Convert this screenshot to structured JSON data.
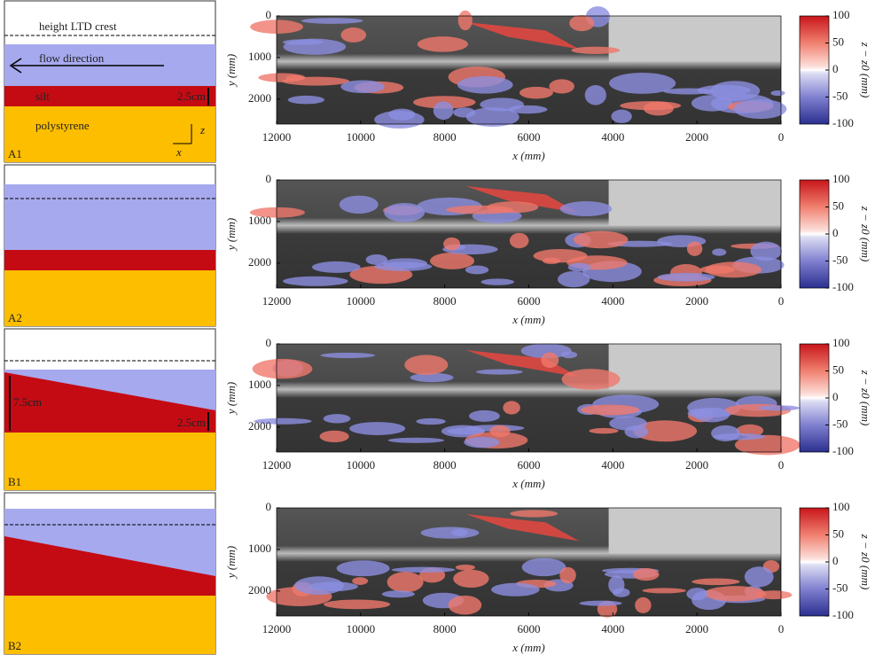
{
  "panels": [
    {
      "label": "A1",
      "crest": "height LTD crest",
      "flow": "flow direction",
      "silt": "silt",
      "thickness": "2.5cm",
      "base": "polystyrene",
      "axis_z": "z",
      "axis_x": "x"
    },
    {
      "label": "A2"
    },
    {
      "label": "B1",
      "thickness_up": "7.5cm",
      "thickness_down": "2.5cm"
    },
    {
      "label": "B2"
    }
  ],
  "plot": {
    "xlabel": "x (mm)",
    "ylabel": "y (mm)",
    "xticks": [
      12000,
      10000,
      8000,
      6000,
      4000,
      2000,
      0
    ],
    "yticks": [
      0,
      1000,
      2000
    ],
    "colorbar_ticks": [
      100,
      50,
      0,
      -50,
      -100
    ],
    "colorbar_label": "z − z0 (mm)"
  }
}
